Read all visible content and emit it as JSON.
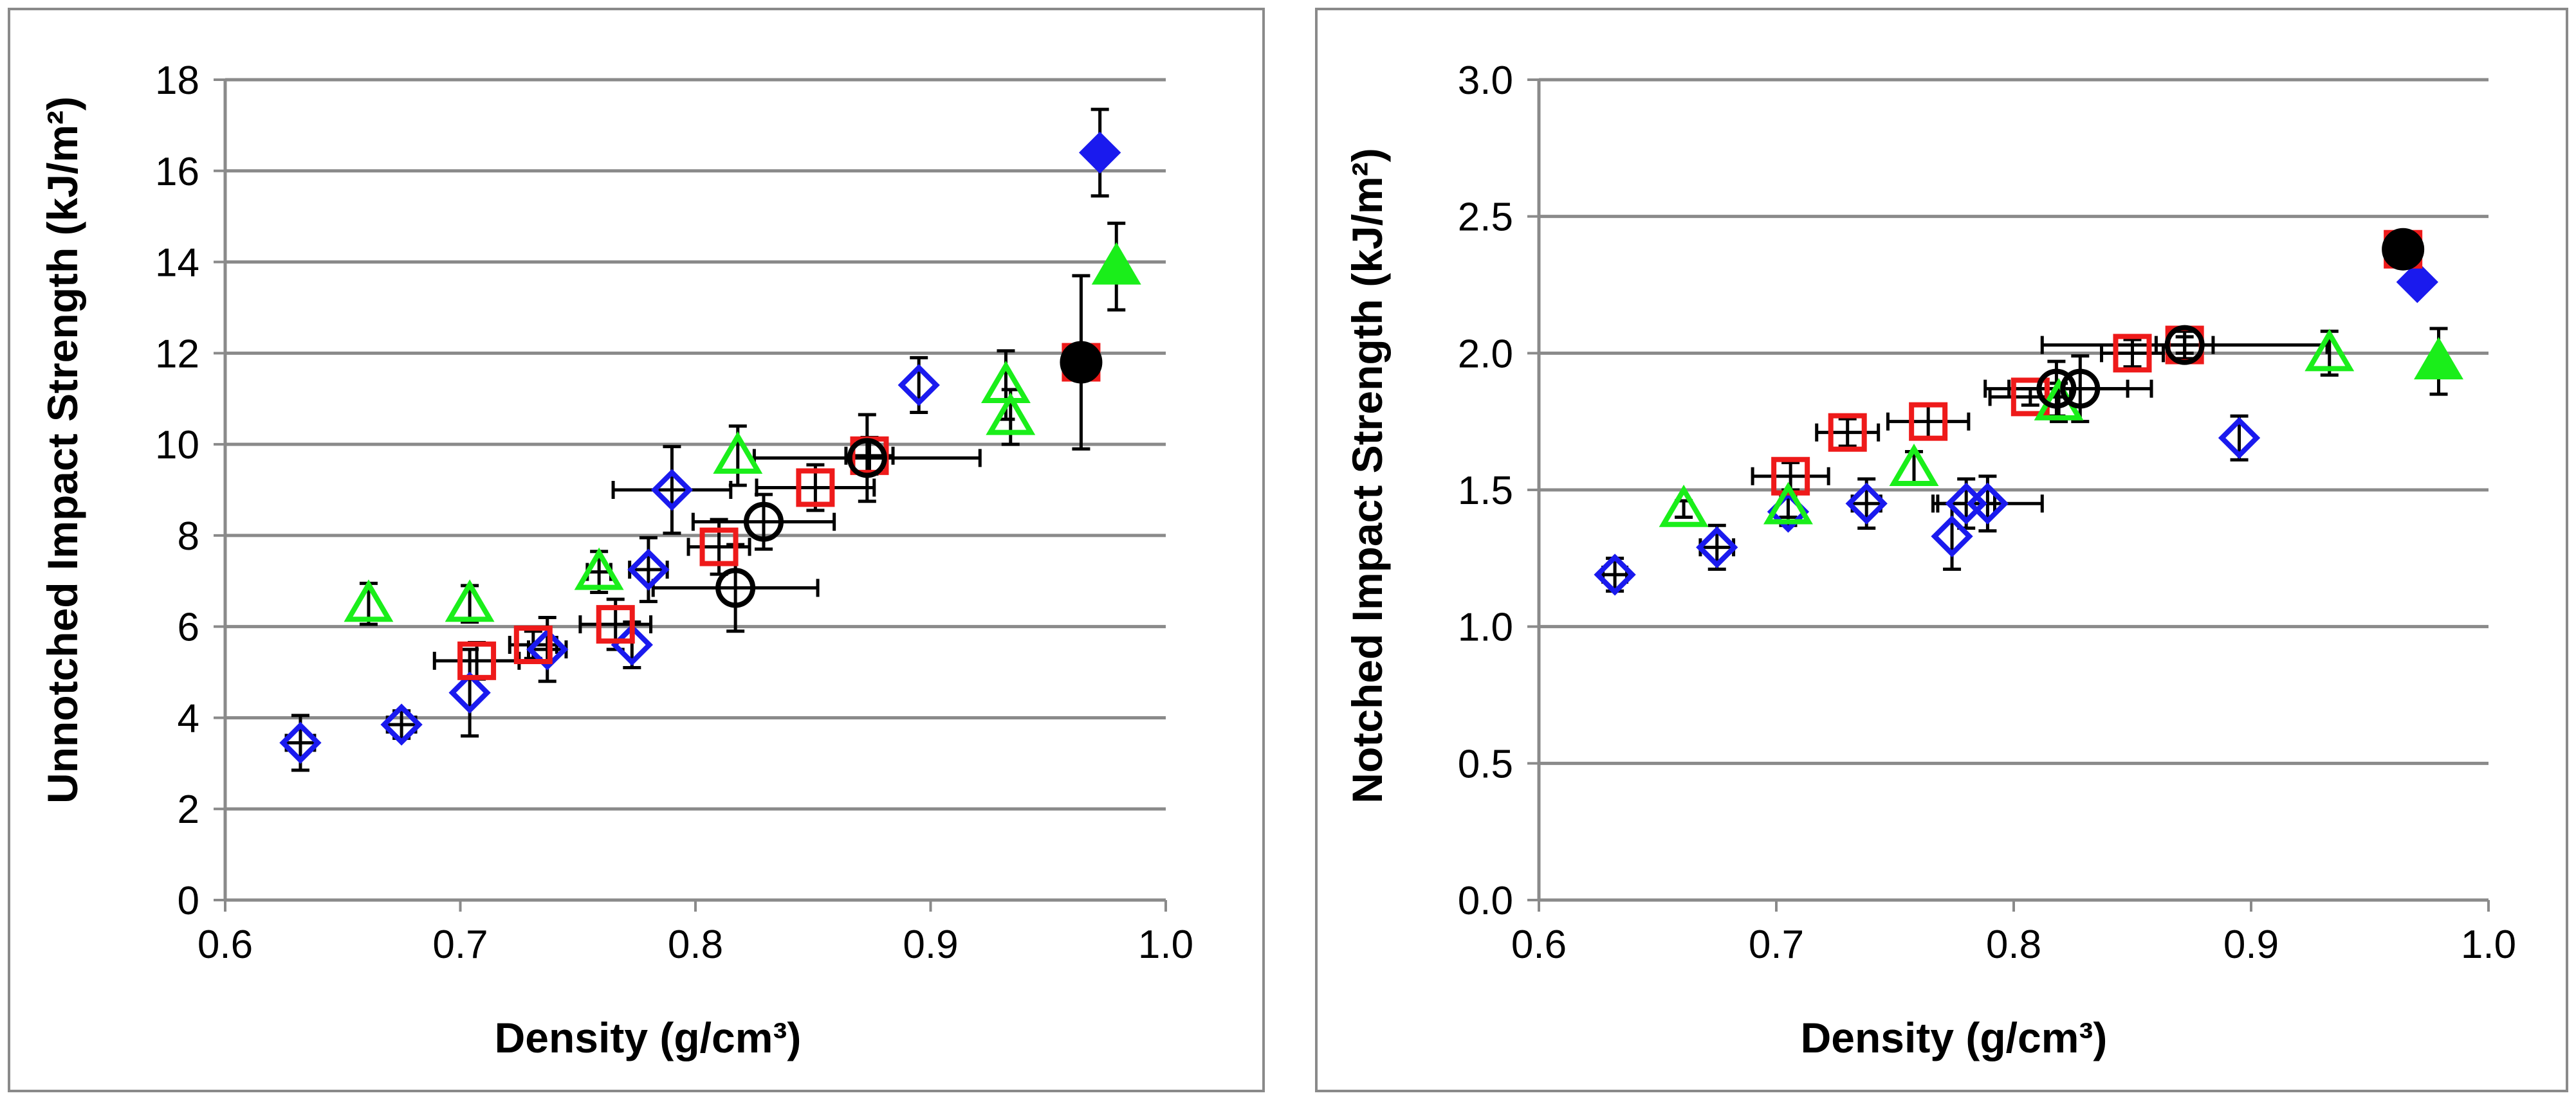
{
  "colors": {
    "grid": "#8a8a8a",
    "frame": "#8a8a8a",
    "blue": "#1a1aee",
    "red": "#ee1a1a",
    "green": "#1aee1a",
    "black": "#000000"
  },
  "chart_data": [
    {
      "type": "scatter",
      "title": "",
      "xlabel": "Density (g/cm³)",
      "ylabel": "Unnotched Impact Strength (kJ/m²)",
      "xlim": [
        0.6,
        1.0
      ],
      "ylim": [
        0,
        18
      ],
      "xticks": [
        "0.6",
        "0.7",
        "0.8",
        "0.9",
        "1.0"
      ],
      "yticks": [
        "0",
        "2",
        "4",
        "6",
        "8",
        "10",
        "12",
        "14",
        "16",
        "18"
      ],
      "grid": true,
      "series": [
        {
          "name": "open-diamond",
          "marker": "diamond",
          "color": "blue",
          "filled": false,
          "points": [
            {
              "x": 0.632,
              "y": 3.45,
              "yerr": 0.6,
              "xerr": 0.006
            },
            {
              "x": 0.675,
              "y": 3.85,
              "yerr": 0.3,
              "xerr": 0.006
            },
            {
              "x": 0.704,
              "y": 4.55,
              "yerr": 0.95,
              "xerr": 0
            },
            {
              "x": 0.737,
              "y": 5.5,
              "yerr": 0.7,
              "xerr": 0.008
            },
            {
              "x": 0.773,
              "y": 5.6,
              "yerr": 0.5,
              "xerr": 0
            },
            {
              "x": 0.78,
              "y": 7.25,
              "yerr": 0.7,
              "xerr": 0.008
            },
            {
              "x": 0.79,
              "y": 9.0,
              "yerr": 0.95,
              "xerr": 0.025
            },
            {
              "x": 0.895,
              "y": 11.3,
              "yerr": 0.6,
              "xerr": 0
            }
          ]
        },
        {
          "name": "filled-diamond",
          "marker": "diamond",
          "color": "blue",
          "filled": true,
          "points": [
            {
              "x": 0.972,
              "y": 16.4,
              "yerr": 0.95,
              "xerr": 0
            }
          ]
        },
        {
          "name": "open-square",
          "marker": "square",
          "color": "red",
          "filled": false,
          "points": [
            {
              "x": 0.707,
              "y": 5.25,
              "yerr": 0.4,
              "xerr": 0.018
            },
            {
              "x": 0.731,
              "y": 5.6,
              "yerr": 0.3,
              "xerr": 0.01
            },
            {
              "x": 0.766,
              "y": 6.05,
              "yerr": 0.55,
              "xerr": 0.015
            },
            {
              "x": 0.81,
              "y": 7.75,
              "yerr": 0.6,
              "xerr": 0.013
            },
            {
              "x": 0.851,
              "y": 9.05,
              "yerr": 0.5,
              "xerr": 0.025
            },
            {
              "x": 0.874,
              "y": 9.75,
              "yerr": 0.4,
              "xerr": 0.01
            }
          ]
        },
        {
          "name": "filled-square",
          "marker": "square",
          "color": "red",
          "filled": true,
          "points": [
            {
              "x": 0.964,
              "y": 11.8,
              "yerr": 0,
              "xerr": 0
            }
          ]
        },
        {
          "name": "open-circle",
          "marker": "circle",
          "color": "black",
          "filled": false,
          "points": [
            {
              "x": 0.817,
              "y": 6.85,
              "yerr": 0.95,
              "xerr": 0.035
            },
            {
              "x": 0.829,
              "y": 8.3,
              "yerr": 0.6,
              "xerr": 0.03
            },
            {
              "x": 0.873,
              "y": 9.7,
              "yerr": 0.95,
              "xerr": 0.048
            }
          ]
        },
        {
          "name": "filled-circle",
          "marker": "circle",
          "color": "black",
          "filled": true,
          "points": [
            {
              "x": 0.964,
              "y": 11.8,
              "yerr": 1.9,
              "xerr": 0
            }
          ]
        },
        {
          "name": "open-triangle",
          "marker": "triangle",
          "color": "green",
          "filled": false,
          "points": [
            {
              "x": 0.661,
              "y": 6.5,
              "yerr": 0.45,
              "xerr": 0
            },
            {
              "x": 0.704,
              "y": 6.5,
              "yerr": 0.4,
              "xerr": 0
            },
            {
              "x": 0.759,
              "y": 7.2,
              "yerr": 0.45,
              "xerr": 0.005
            },
            {
              "x": 0.818,
              "y": 9.75,
              "yerr": 0.65,
              "xerr": 0
            },
            {
              "x": 0.932,
              "y": 11.3,
              "yerr": 0.75,
              "xerr": 0
            },
            {
              "x": 0.934,
              "y": 10.6,
              "yerr": 0.6,
              "xerr": 0
            }
          ]
        },
        {
          "name": "filled-triangle",
          "marker": "triangle",
          "color": "green",
          "filled": true,
          "points": [
            {
              "x": 0.979,
              "y": 13.9,
              "yerr": 0.95,
              "xerr": 0
            }
          ]
        }
      ]
    },
    {
      "type": "scatter",
      "title": "",
      "xlabel": "Density (g/cm³)",
      "ylabel": "Notched Impact Strength (kJ/m²)",
      "xlim": [
        0.6,
        1.0
      ],
      "ylim": [
        0,
        3
      ],
      "xticks": [
        "0.6",
        "0.7",
        "0.8",
        "0.9",
        "1.0"
      ],
      "yticks": [
        "0.0",
        "0.5",
        "1.0",
        "1.5",
        "2.0",
        "2.5",
        "3.0"
      ],
      "grid": true,
      "series": [
        {
          "name": "open-diamond",
          "marker": "diamond",
          "color": "blue",
          "filled": false,
          "points": [
            {
              "x": 0.632,
              "y": 1.19,
              "yerr": 0.06,
              "xerr": 0.005
            },
            {
              "x": 0.675,
              "y": 1.29,
              "yerr": 0.08,
              "xerr": 0.007
            },
            {
              "x": 0.705,
              "y": 1.42,
              "yerr": 0.05,
              "xerr": 0
            },
            {
              "x": 0.738,
              "y": 1.45,
              "yerr": 0.09,
              "xerr": 0.006
            },
            {
              "x": 0.774,
              "y": 1.33,
              "yerr": 0.12,
              "xerr": 0
            },
            {
              "x": 0.78,
              "y": 1.45,
              "yerr": 0.09,
              "xerr": 0.012
            },
            {
              "x": 0.789,
              "y": 1.45,
              "yerr": 0.1,
              "xerr": 0.023
            },
            {
              "x": 0.895,
              "y": 1.69,
              "yerr": 0.08,
              "xerr": 0
            }
          ]
        },
        {
          "name": "filled-diamond",
          "marker": "diamond",
          "color": "blue",
          "filled": true,
          "points": [
            {
              "x": 0.97,
              "y": 2.26,
              "yerr": 0.02,
              "xerr": 0
            }
          ]
        },
        {
          "name": "open-square",
          "marker": "square",
          "color": "red",
          "filled": false,
          "points": [
            {
              "x": 0.706,
              "y": 1.55,
              "yerr": 0.05,
              "xerr": 0.016
            },
            {
              "x": 0.73,
              "y": 1.71,
              "yerr": 0.05,
              "xerr": 0.013
            },
            {
              "x": 0.764,
              "y": 1.75,
              "yerr": 0.06,
              "xerr": 0.017
            },
            {
              "x": 0.807,
              "y": 1.84,
              "yerr": 0.03,
              "xerr": 0.017
            },
            {
              "x": 0.85,
              "y": 2.0,
              "yerr": 0.05,
              "xerr": 0.013
            },
            {
              "x": 0.872,
              "y": 2.03,
              "yerr": 0.03,
              "xerr": 0.012
            }
          ]
        },
        {
          "name": "filled-square",
          "marker": "square",
          "color": "red",
          "filled": true,
          "points": [
            {
              "x": 0.964,
              "y": 2.38,
              "yerr": 0,
              "xerr": 0
            }
          ]
        },
        {
          "name": "open-circle",
          "marker": "circle",
          "color": "black",
          "filled": false,
          "points": [
            {
              "x": 0.818,
              "y": 1.87,
              "yerr": 0.1,
              "xerr": 0.03
            },
            {
              "x": 0.828,
              "y": 1.87,
              "yerr": 0.12,
              "xerr": 0.03
            },
            {
              "x": 0.872,
              "y": 2.03,
              "yerr": 0.05,
              "xerr": 0.06
            }
          ]
        },
        {
          "name": "filled-circle",
          "marker": "circle",
          "color": "black",
          "filled": true,
          "points": [
            {
              "x": 0.964,
              "y": 2.38,
              "yerr": 0,
              "xerr": 0
            }
          ]
        },
        {
          "name": "open-triangle",
          "marker": "triangle",
          "color": "green",
          "filled": false,
          "points": [
            {
              "x": 0.661,
              "y": 1.43,
              "yerr": 0.03,
              "xerr": 0
            },
            {
              "x": 0.705,
              "y": 1.44,
              "yerr": 0.04,
              "xerr": 0
            },
            {
              "x": 0.758,
              "y": 1.58,
              "yerr": 0.06,
              "xerr": 0
            },
            {
              "x": 0.819,
              "y": 1.82,
              "yerr": 0.07,
              "xerr": 0
            },
            {
              "x": 0.933,
              "y": 2.0,
              "yerr": 0.08,
              "xerr": 0
            }
          ]
        },
        {
          "name": "filled-triangle",
          "marker": "triangle",
          "color": "green",
          "filled": true,
          "points": [
            {
              "x": 0.979,
              "y": 1.97,
              "yerr": 0.12,
              "xerr": 0
            }
          ]
        }
      ]
    }
  ]
}
